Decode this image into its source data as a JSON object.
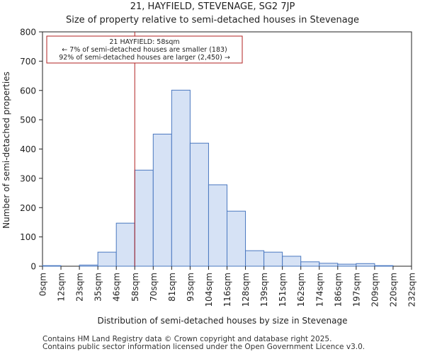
{
  "chart_data": {
    "type": "bar",
    "title": "21, HAYFIELD, STEVENAGE, SG2 7JP",
    "subtitle": "Size of property relative to semi-detached houses in Stevenage",
    "xlabel": "Distribution of semi-detached houses by size in Stevenage",
    "ylabel": "Number of semi-detached properties",
    "bin_edges": [
      0,
      12,
      23,
      35,
      46,
      58,
      70,
      81,
      93,
      104,
      116,
      128,
      139,
      151,
      162,
      174,
      186,
      197,
      209,
      220,
      232
    ],
    "tick_labels": [
      "0sqm",
      "12sqm",
      "23sqm",
      "35sqm",
      "46sqm",
      "58sqm",
      "70sqm",
      "81sqm",
      "93sqm",
      "104sqm",
      "116sqm",
      "128sqm",
      "139sqm",
      "151sqm",
      "162sqm",
      "174sqm",
      "186sqm",
      "197sqm",
      "209sqm",
      "220sqm",
      "232sqm"
    ],
    "values": [
      2,
      0,
      4,
      48,
      147,
      328,
      451,
      601,
      420,
      278,
      188,
      53,
      48,
      34,
      15,
      10,
      7,
      9,
      2,
      0
    ],
    "ylim": [
      0,
      800
    ],
    "yticks": [
      0,
      100,
      200,
      300,
      400,
      500,
      600,
      700,
      800
    ],
    "bar_fill": "#d6e2f5",
    "bar_stroke": "#4a78c0",
    "marker": {
      "value": 58,
      "color": "#b22222",
      "label_lines": [
        "21 HAYFIELD: 58sqm",
        "← 7% of semi-detached houses are smaller (183)",
        "92% of semi-detached houses are larger (2,450) →"
      ]
    }
  },
  "footer": {
    "line1": "Contains HM Land Registry data © Crown copyright and database right 2025.",
    "line2": "Contains public sector information licensed under the Open Government Licence v3.0."
  }
}
